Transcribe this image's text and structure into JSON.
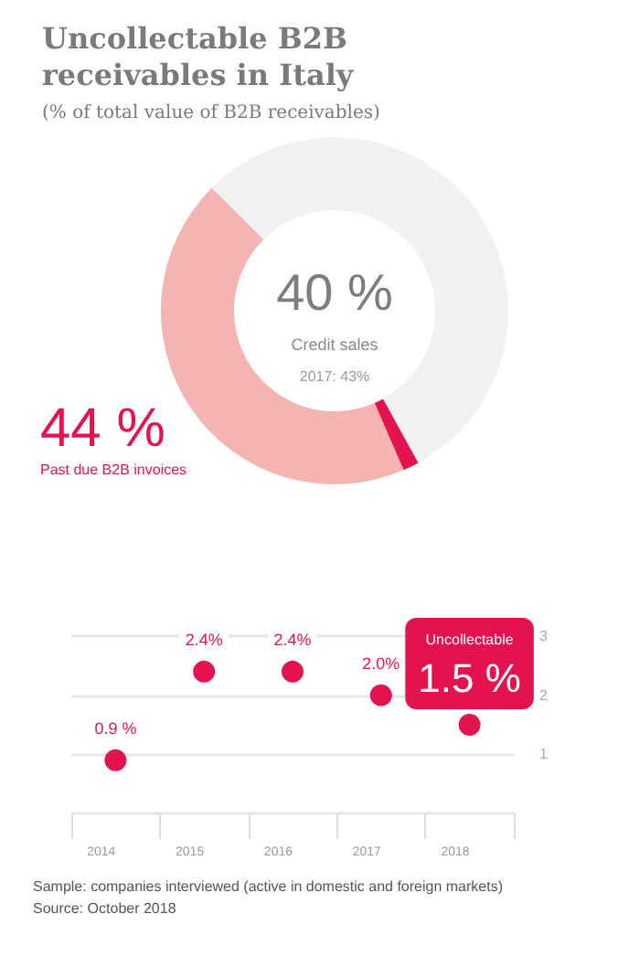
{
  "chart_data": [
    {
      "type": "donut",
      "title": "Uncollectable B2B receivables in Italy",
      "subtitle": "(% of total value of B2B receivables)",
      "categories": [
        null,
        null,
        "Past due B2B invoices"
      ],
      "values": [
        54.5,
        1.5,
        44
      ],
      "colors": [
        "#f1f1f3",
        "#e4134f",
        "#f4b4b2"
      ],
      "value_labels": [
        null,
        null,
        "44 %"
      ],
      "annotations": [
        "40 %",
        "Credit sales",
        "2017: 43%"
      ]
    },
    {
      "type": "scatter",
      "categories": [
        "2014",
        "2015",
        "2016",
        "2017",
        "2018"
      ],
      "values": [
        0.9,
        2.4,
        2.4,
        2.0,
        1.5
      ],
      "color": "#e4134f",
      "marker": "circle",
      "value_labels": [
        "0.9 %",
        "2.4%",
        "2.4%",
        "2.0%",
        "1.5 %"
      ],
      "ylim": [
        0,
        3
      ],
      "yticks": [
        {
          "value": 0,
          "label": null
        },
        1,
        2,
        3
      ],
      "grid": "y",
      "annotations": [
        "Uncollectable",
        "Sample: companies interviewed (active in domestic and foreign markets)",
        "Source: October 2018"
      ]
    }
  ]
}
